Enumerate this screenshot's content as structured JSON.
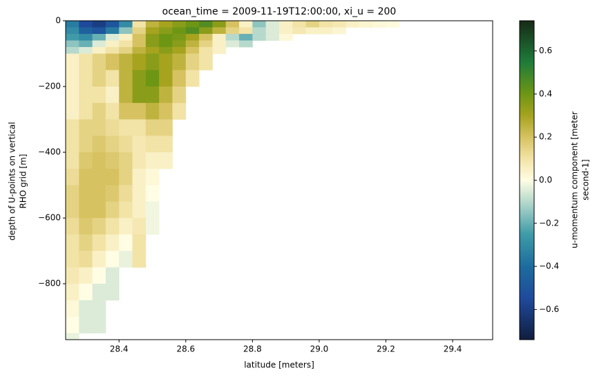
{
  "chart_data": {
    "type": "heatmap",
    "title": "ocean_time = 2009-11-19T12:00:00, xi_u = 200",
    "xlabel": "latitude [meters]",
    "ylabel": [
      "depth of U-points on vertical",
      "RHO grid [m]"
    ],
    "colorbar_label": [
      "u-momentum component [meter",
      "second-1]"
    ],
    "xlim": [
      28.24,
      29.52
    ],
    "ylim": [
      -970,
      0
    ],
    "xticks": [
      28.4,
      28.6,
      28.8,
      {
        "value": 29.0,
        "label": "29.0"
      },
      29.2,
      29.4
    ],
    "yticks": [
      0,
      {
        "value": -200,
        "label": "−200"
      },
      {
        "value": -400,
        "label": "−400"
      },
      {
        "value": -600,
        "label": "−600"
      },
      {
        "value": -800,
        "label": "−800"
      }
    ],
    "clim": [
      -0.74,
      0.74
    ],
    "cticks": [
      {
        "value": -0.6,
        "label": "−0.6"
      },
      {
        "value": -0.4,
        "label": "−0.4"
      },
      {
        "value": -0.2,
        "label": "−0.2"
      },
      {
        "value": 0,
        "label": "0.0"
      },
      0.2,
      0.4,
      0.6
    ],
    "colorscale": [
      [
        -0.74,
        "#111d3e"
      ],
      [
        -0.55,
        "#1f4a9c"
      ],
      [
        -0.4,
        "#1d6c9e"
      ],
      [
        -0.25,
        "#3f9ba8"
      ],
      [
        -0.1,
        "#b6d9cc"
      ],
      [
        0,
        "#fffde4"
      ],
      [
        0.1,
        "#f2e3a6"
      ],
      [
        0.2,
        "#d7c261"
      ],
      [
        0.3,
        "#a6a31f"
      ],
      [
        0.4,
        "#6e9615"
      ],
      [
        0.55,
        "#1e7b3a"
      ],
      [
        0.74,
        "#172a16"
      ]
    ],
    "x_edges": [
      28.24,
      28.28,
      28.32,
      28.36,
      28.4,
      28.44,
      28.48,
      28.52,
      28.56,
      28.6,
      28.64,
      28.68,
      28.72,
      28.76,
      28.8,
      28.84,
      28.88,
      28.92,
      28.96,
      29.0,
      29.04,
      29.08,
      29.12,
      29.16,
      29.2,
      29.24,
      29.28
    ],
    "y_edges": [
      0,
      -20,
      -40,
      -60,
      -80,
      -100,
      -150,
      -200,
      -250,
      -300,
      -350,
      -400,
      -450,
      -500,
      -550,
      -600,
      -650,
      -700,
      -750,
      -800,
      -850,
      -900,
      -950,
      -970
    ],
    "values": [
      [
        -0.35,
        -0.55,
        -0.6,
        -0.5,
        -0.3,
        0.1,
        0.25,
        0.3,
        0.35,
        0.4,
        0.45,
        0.35,
        0.2,
        0.05,
        -0.15,
        -0.05,
        0.05,
        0.1,
        0.15,
        0.1,
        0.08,
        0.05,
        0.03,
        0.02,
        0.01,
        null
      ],
      [
        -0.3,
        -0.45,
        -0.5,
        -0.35,
        -0.15,
        0.15,
        0.3,
        0.35,
        0.4,
        0.45,
        0.35,
        0.25,
        0.15,
        0.1,
        -0.1,
        -0.05,
        0.05,
        0.08,
        0.05,
        0.05,
        0.03,
        null,
        null,
        null,
        null,
        null
      ],
      [
        -0.25,
        -0.3,
        -0.2,
        -0.05,
        0.05,
        0.2,
        0.35,
        0.4,
        0.38,
        0.3,
        0.2,
        0.05,
        -0.1,
        -0.2,
        -0.1,
        -0.05,
        0.02,
        null,
        null,
        null,
        null,
        null,
        null,
        null,
        null,
        null
      ],
      [
        -0.15,
        -0.2,
        -0.05,
        0.05,
        0.1,
        0.2,
        0.35,
        0.4,
        0.35,
        0.25,
        0.15,
        0.05,
        -0.05,
        -0.1,
        null,
        null,
        null,
        null,
        null,
        null,
        null,
        null,
        null,
        null,
        null,
        null
      ],
      [
        -0.1,
        -0.05,
        0.05,
        0.1,
        0.15,
        0.25,
        0.3,
        0.35,
        0.3,
        0.2,
        0.1,
        0.05,
        null,
        null,
        null,
        null,
        null,
        null,
        null,
        null,
        null,
        null,
        null,
        null,
        null,
        null
      ],
      [
        0.05,
        0.1,
        0.15,
        0.2,
        0.25,
        0.3,
        0.35,
        0.3,
        0.25,
        0.15,
        0.1,
        null,
        null,
        null,
        null,
        null,
        null,
        null,
        null,
        null,
        null,
        null,
        null,
        null,
        null,
        null
      ],
      [
        0.05,
        0.1,
        0.15,
        0.1,
        0.25,
        0.35,
        0.4,
        0.3,
        0.2,
        0.1,
        null,
        null,
        null,
        null,
        null,
        null,
        null,
        null,
        null,
        null,
        null,
        null,
        null,
        null,
        null,
        null
      ],
      [
        0.05,
        0.1,
        0.1,
        0.05,
        0.25,
        0.35,
        0.35,
        0.25,
        0.15,
        null,
        null,
        null,
        null,
        null,
        null,
        null,
        null,
        null,
        null,
        null,
        null,
        null,
        null,
        null,
        null,
        null
      ],
      [
        0.05,
        0.1,
        0.15,
        0.1,
        0.2,
        0.2,
        0.25,
        0.2,
        0.1,
        null,
        null,
        null,
        null,
        null,
        null,
        null,
        null,
        null,
        null,
        null,
        null,
        null,
        null,
        null,
        null,
        null
      ],
      [
        0.1,
        0.15,
        0.15,
        0.12,
        0.1,
        0.1,
        0.15,
        0.15,
        null,
        null,
        null,
        null,
        null,
        null,
        null,
        null,
        null,
        null,
        null,
        null,
        null,
        null,
        null,
        null,
        null,
        null
      ],
      [
        0.1,
        0.15,
        0.18,
        0.15,
        0.12,
        0.08,
        0.1,
        0.1,
        null,
        null,
        null,
        null,
        null,
        null,
        null,
        null,
        null,
        null,
        null,
        null,
        null,
        null,
        null,
        null,
        null,
        null
      ],
      [
        0.1,
        0.18,
        0.2,
        0.18,
        0.15,
        0.08,
        0.05,
        0.05,
        null,
        null,
        null,
        null,
        null,
        null,
        null,
        null,
        null,
        null,
        null,
        null,
        null,
        null,
        null,
        null,
        null,
        null
      ],
      [
        0.12,
        0.2,
        0.2,
        0.2,
        0.15,
        0.05,
        0.02,
        null,
        null,
        null,
        null,
        null,
        null,
        null,
        null,
        null,
        null,
        null,
        null,
        null,
        null,
        null,
        null,
        null,
        null,
        null
      ],
      [
        0.15,
        0.2,
        0.2,
        0.18,
        0.12,
        0.05,
        0.0,
        null,
        null,
        null,
        null,
        null,
        null,
        null,
        null,
        null,
        null,
        null,
        null,
        null,
        null,
        null,
        null,
        null,
        null,
        null
      ],
      [
        0.15,
        0.2,
        0.2,
        0.15,
        0.1,
        0.05,
        -0.02,
        null,
        null,
        null,
        null,
        null,
        null,
        null,
        null,
        null,
        null,
        null,
        null,
        null,
        null,
        null,
        null,
        null,
        null,
        null
      ],
      [
        0.12,
        0.18,
        0.15,
        0.1,
        0.05,
        0.08,
        -0.02,
        null,
        null,
        null,
        null,
        null,
        null,
        null,
        null,
        null,
        null,
        null,
        null,
        null,
        null,
        null,
        null,
        null,
        null,
        null
      ],
      [
        0.1,
        0.15,
        0.1,
        0.05,
        0.0,
        0.1,
        null,
        null,
        null,
        null,
        null,
        null,
        null,
        null,
        null,
        null,
        null,
        null,
        null,
        null,
        null,
        null,
        null,
        null,
        null,
        null
      ],
      [
        0.1,
        0.12,
        0.05,
        0.0,
        -0.03,
        0.1,
        null,
        null,
        null,
        null,
        null,
        null,
        null,
        null,
        null,
        null,
        null,
        null,
        null,
        null,
        null,
        null,
        null,
        null,
        null,
        null
      ],
      [
        0.08,
        0.05,
        0.0,
        -0.05,
        null,
        null,
        null,
        null,
        null,
        null,
        null,
        null,
        null,
        null,
        null,
        null,
        null,
        null,
        null,
        null,
        null,
        null,
        null,
        null,
        null,
        null
      ],
      [
        0.05,
        0.0,
        -0.05,
        -0.05,
        null,
        null,
        null,
        null,
        null,
        null,
        null,
        null,
        null,
        null,
        null,
        null,
        null,
        null,
        null,
        null,
        null,
        null,
        null,
        null,
        null,
        null
      ],
      [
        0.02,
        -0.05,
        -0.05,
        null,
        null,
        null,
        null,
        null,
        null,
        null,
        null,
        null,
        null,
        null,
        null,
        null,
        null,
        null,
        null,
        null,
        null,
        null,
        null,
        null,
        null,
        null
      ],
      [
        0.0,
        -0.05,
        -0.05,
        null,
        null,
        null,
        null,
        null,
        null,
        null,
        null,
        null,
        null,
        null,
        null,
        null,
        null,
        null,
        null,
        null,
        null,
        null,
        null,
        null,
        null,
        null
      ],
      [
        -0.03,
        null,
        null,
        null,
        null,
        null,
        null,
        null,
        null,
        null,
        null,
        null,
        null,
        null,
        null,
        null,
        null,
        null,
        null,
        null,
        null,
        null,
        null,
        null,
        null,
        null
      ]
    ]
  }
}
